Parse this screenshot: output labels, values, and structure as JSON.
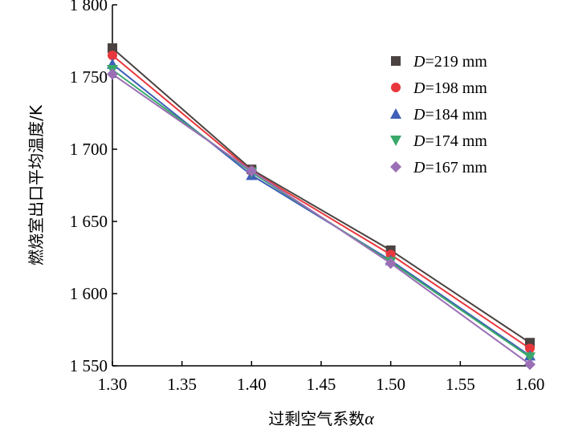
{
  "chart_data": {
    "type": "line",
    "title": "",
    "xlabel": "过剩空气系数",
    "xlabel_symbol": "α",
    "ylabel": "燃烧室出口平均温度/K",
    "x": [
      1.3,
      1.4,
      1.5,
      1.6
    ],
    "xlim": [
      1.3,
      1.6
    ],
    "ylim": [
      1550,
      1800
    ],
    "x_ticks": [
      "1.30",
      "1.35",
      "1.40",
      "1.45",
      "1.50",
      "1.55",
      "1.60"
    ],
    "y_ticks": [
      "1 550",
      "1 600",
      "1 650",
      "1 700",
      "1 750",
      "1 800"
    ],
    "grid": false,
    "legend_position": "top-right",
    "legend_symbol": "D",
    "series": [
      {
        "name": "=219 mm",
        "color": "#4a4341",
        "marker": "square",
        "values": [
          1770,
          1686,
          1630,
          1566
        ]
      },
      {
        "name": "=198 mm",
        "color": "#e8383d",
        "marker": "circle",
        "values": [
          1765,
          1685,
          1627,
          1562
        ]
      },
      {
        "name": "=184 mm",
        "color": "#3f5fb8",
        "marker": "triangle-up",
        "values": [
          1759,
          1682,
          1623,
          1557
        ]
      },
      {
        "name": "=174 mm",
        "color": "#3aa86a",
        "marker": "triangle-down",
        "values": [
          1755,
          1684,
          1622,
          1556
        ]
      },
      {
        "name": "=167 mm",
        "color": "#9a6fb5",
        "marker": "diamond",
        "values": [
          1752,
          1685,
          1621,
          1551
        ]
      }
    ]
  }
}
